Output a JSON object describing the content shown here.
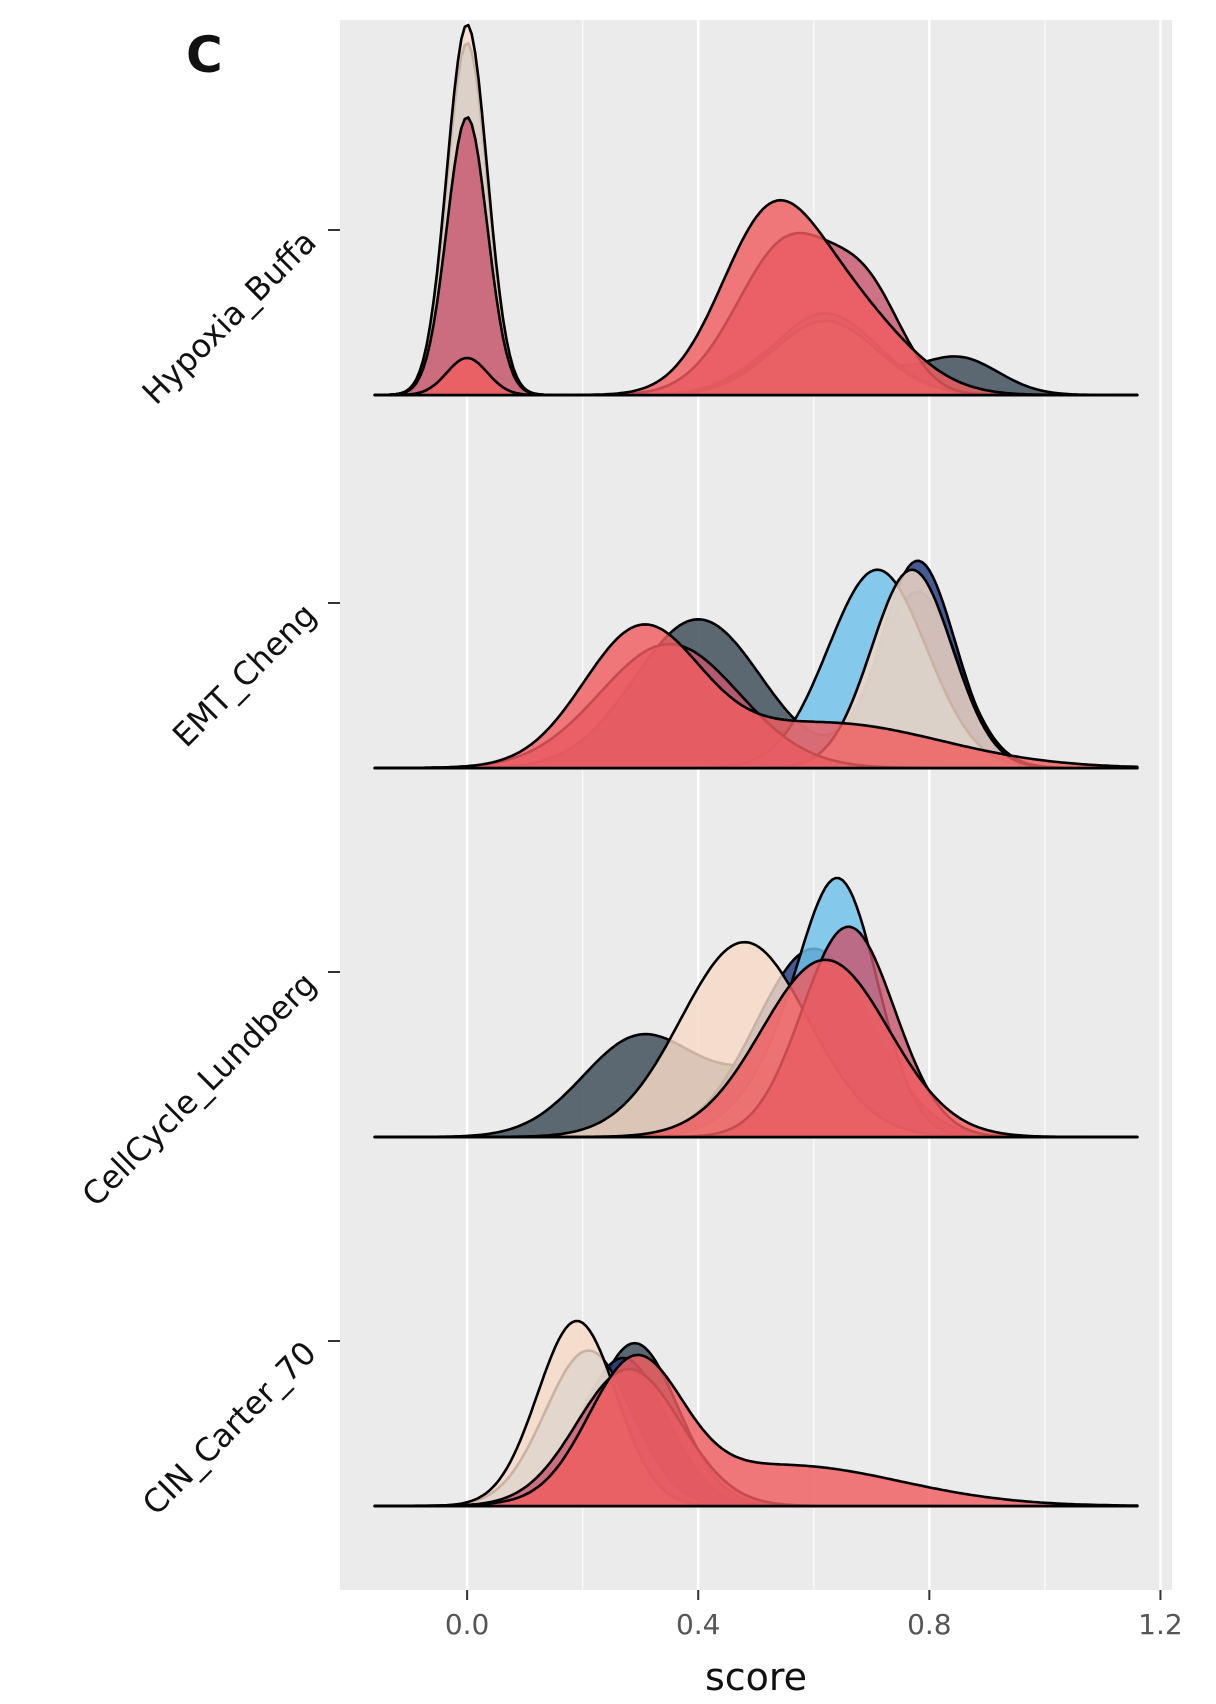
{
  "chart_data": {
    "type": "ridgeline",
    "panel_label": "C",
    "xlabel": "score",
    "ylabel": "",
    "xlim": [
      -0.22,
      1.22
    ],
    "x_ticks": [
      "0.0",
      "0.4",
      "0.8",
      "1.2"
    ],
    "x_tick_values": [
      0.0,
      0.4,
      0.8,
      1.2
    ],
    "x_range_of_curves": [
      -0.16,
      1.16
    ],
    "categories": [
      "Hypoxia_Buffa",
      "EMT_Cheng",
      "CellCycle_Lundberg",
      "CIN_Carter_70"
    ],
    "group_colors": {
      "dark_gray": "#3a4a57",
      "navy": "#1f3b80",
      "light_blue": "#6cc0ea",
      "peach": "#f6d9c6",
      "pink": "#c8576f",
      "red": "#ef5d5f"
    },
    "background": "#ebebeb",
    "grid": true,
    "ridges": [
      {
        "category": "Hypoxia_Buffa",
        "height": 1.0,
        "groups": [
          {
            "color": "dark_gray",
            "components": [
              [
                0.95,
                0.0,
                0.035
              ],
              [
                0.18,
                0.6,
                0.09
              ],
              [
                0.1,
                0.85,
                0.07
              ]
            ]
          },
          {
            "color": "navy",
            "components": [
              [
                0.95,
                0.0,
                0.035
              ],
              [
                0.2,
                0.62,
                0.09
              ]
            ]
          },
          {
            "color": "light_blue",
            "components": [
              [
                0.95,
                0.0,
                0.035
              ],
              [
                0.22,
                0.62,
                0.09
              ]
            ]
          },
          {
            "color": "peach",
            "components": [
              [
                1.0,
                0.0,
                0.035
              ],
              [
                0.2,
                0.62,
                0.09
              ]
            ]
          },
          {
            "color": "pink",
            "components": [
              [
                0.75,
                0.0,
                0.035
              ],
              [
                0.42,
                0.56,
                0.09
              ],
              [
                0.2,
                0.7,
                0.06
              ]
            ]
          },
          {
            "color": "red",
            "components": [
              [
                0.1,
                0.0,
                0.035
              ],
              [
                0.43,
                0.52,
                0.085
              ],
              [
                0.22,
                0.66,
                0.1
              ]
            ]
          }
        ]
      },
      {
        "category": "EMT_Cheng",
        "height": 0.56,
        "groups": [
          {
            "color": "dark_gray",
            "components": [
              [
                0.66,
                0.4,
                0.11
              ],
              [
                0.78,
                0.78,
                0.07
              ]
            ]
          },
          {
            "color": "navy",
            "components": [
              [
                0.92,
                0.78,
                0.065
              ]
            ]
          },
          {
            "color": "light_blue",
            "components": [
              [
                0.88,
                0.71,
                0.085
              ]
            ]
          },
          {
            "color": "peach",
            "components": [
              [
                0.88,
                0.77,
                0.07
              ]
            ]
          },
          {
            "color": "pink",
            "components": [
              [
                0.55,
                0.35,
                0.12
              ]
            ]
          },
          {
            "color": "red",
            "components": [
              [
                0.58,
                0.3,
                0.1
              ],
              [
                0.2,
                0.62,
                0.2
              ]
            ]
          }
        ]
      },
      {
        "category": "CellCycle_Lundberg",
        "height": 0.7,
        "groups": [
          {
            "color": "dark_gray",
            "components": [
              [
                0.45,
                0.3,
                0.1
              ],
              [
                0.3,
                0.55,
                0.1
              ]
            ]
          },
          {
            "color": "navy",
            "components": [
              [
                0.85,
                0.6,
                0.1
              ]
            ]
          },
          {
            "color": "light_blue",
            "components": [
              [
                1.0,
                0.65,
                0.065
              ],
              [
                0.3,
                0.56,
                0.08
              ]
            ]
          },
          {
            "color": "peach",
            "components": [
              [
                0.88,
                0.48,
                0.11
              ]
            ]
          },
          {
            "color": "pink",
            "components": [
              [
                0.95,
                0.66,
                0.08
              ]
            ]
          },
          {
            "color": "red",
            "components": [
              [
                0.8,
                0.62,
                0.11
              ]
            ]
          }
        ]
      },
      {
        "category": "CIN_Carter_70",
        "height": 0.5,
        "groups": [
          {
            "color": "dark_gray",
            "components": [
              [
                0.88,
                0.29,
                0.075
              ]
            ]
          },
          {
            "color": "navy",
            "components": [
              [
                0.8,
                0.27,
                0.075
              ]
            ]
          },
          {
            "color": "light_blue",
            "components": [
              [
                0.84,
                0.21,
                0.075
              ]
            ]
          },
          {
            "color": "peach",
            "components": [
              [
                1.0,
                0.19,
                0.068
              ]
            ]
          },
          {
            "color": "pink",
            "components": [
              [
                0.74,
                0.28,
                0.09
              ]
            ]
          },
          {
            "color": "red",
            "components": [
              [
                0.72,
                0.29,
                0.08
              ],
              [
                0.22,
                0.55,
                0.2
              ]
            ]
          }
        ]
      }
    ]
  }
}
